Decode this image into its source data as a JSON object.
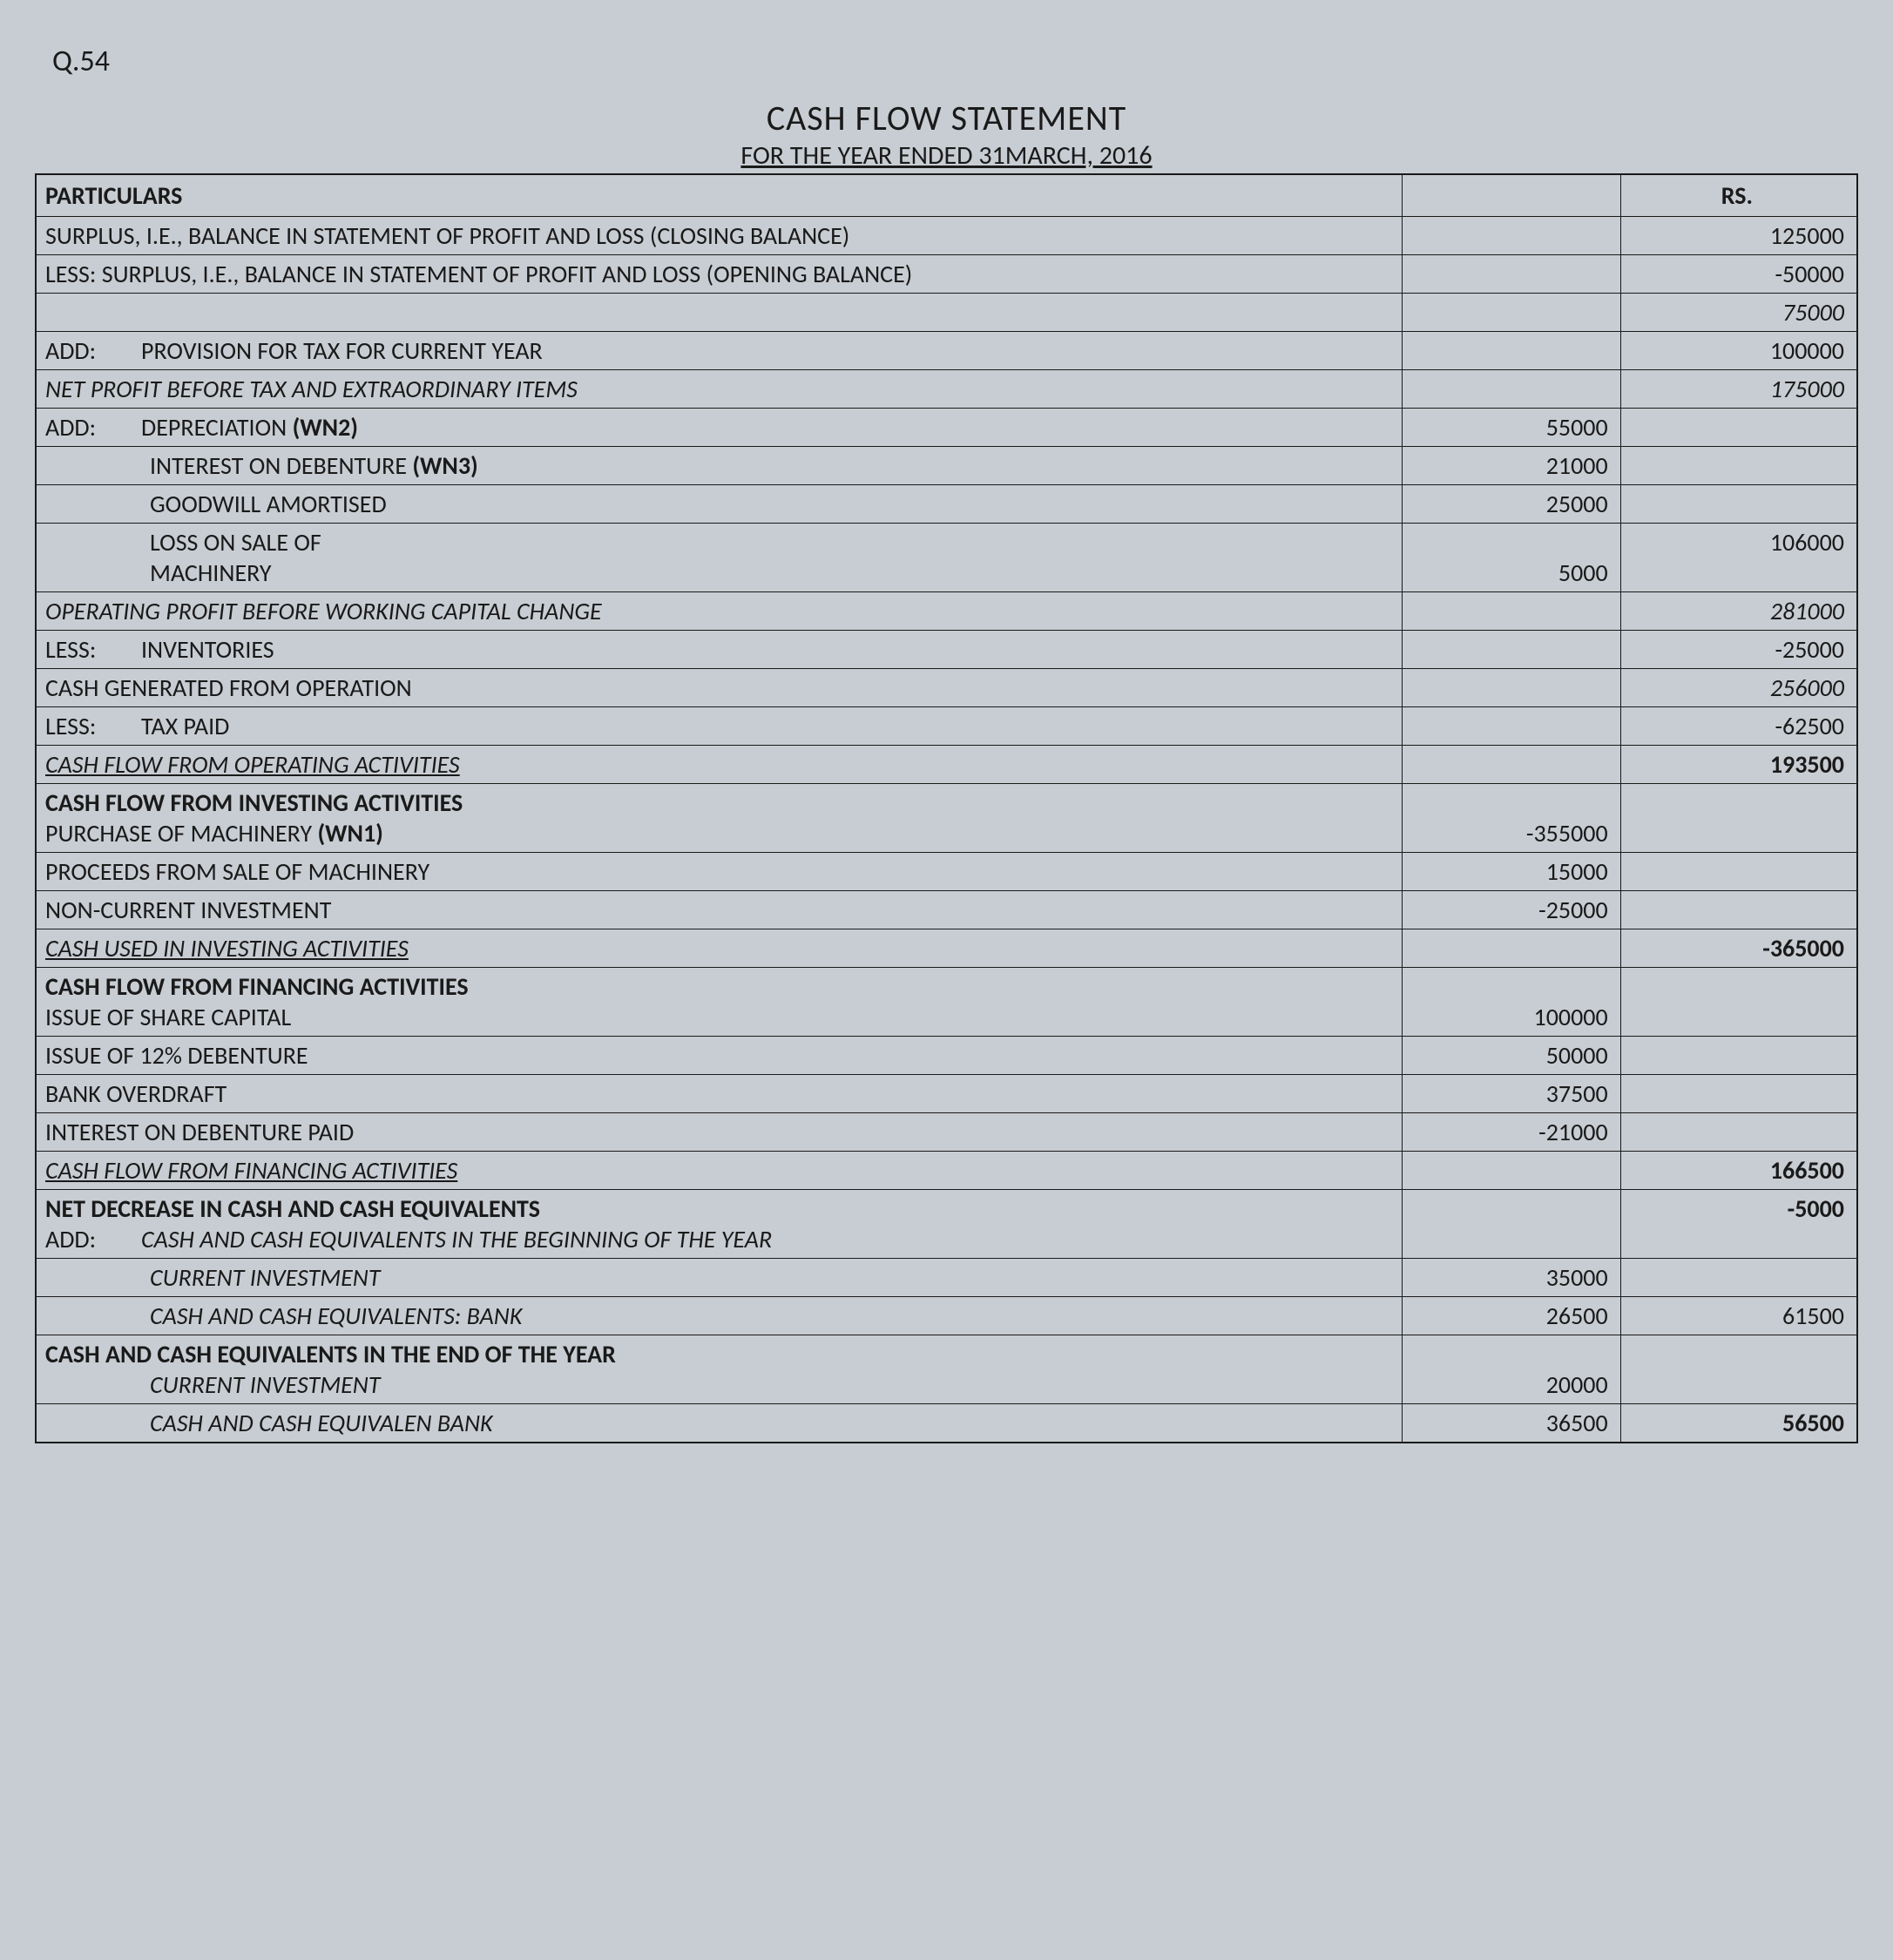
{
  "question_number": "Q.54",
  "title": "CASH FLOW STATEMENT",
  "subtitle": "FOR THE YEAR ENDED 31MARCH, 2016",
  "headers": {
    "particulars": "PARTICULARS",
    "amount2": "RS."
  },
  "rows": [
    {
      "text": "SURPLUS, I.E., BALANCE IN STATEMENT OF PROFIT AND LOSS (CLOSING BALANCE)",
      "amt1": "",
      "amt2": "125000"
    },
    {
      "text": "LESS: SURPLUS, I.E., BALANCE IN STATEMENT OF PROFIT AND LOSS (OPENING BALANCE)",
      "amt1": "",
      "amt2": "-50000"
    },
    {
      "text": "",
      "amt1": "",
      "amt2": "75000",
      "italic2": true
    },
    {
      "prefix": "ADD:",
      "text": "PROVISION FOR TAX FOR CURRENT YEAR",
      "amt1": "",
      "amt2": "100000"
    },
    {
      "text": "NET PROFIT BEFORE TAX AND EXTRAORDINARY ITEMS",
      "italic": true,
      "amt1": "",
      "amt2": "175000",
      "italic2": true
    },
    {
      "prefix": "ADD:",
      "text": "DEPRECIATION ",
      "bold_suffix": "(WN2)",
      "amt1": "55000",
      "amt2": ""
    },
    {
      "indent": true,
      "text": "INTEREST ON DEBENTURE ",
      "bold_suffix": "(WN3)",
      "amt1": "21000",
      "amt2": ""
    },
    {
      "indent": true,
      "text": "GOODWILL AMORTISED",
      "amt1": "25000",
      "amt2": ""
    },
    {
      "indent": true,
      "text": "LOSS ON SALE OF",
      "text2": "MACHINERY",
      "amt1": "5000",
      "amt2": "106000"
    },
    {
      "text": "OPERATING PROFIT BEFORE WORKING CAPITAL CHANGE",
      "italic": true,
      "amt1": "",
      "amt2": "281000",
      "italic2": true
    },
    {
      "prefix": "LESS:",
      "text": "INVENTORIES",
      "amt1": "",
      "amt2": "-25000"
    },
    {
      "text": "CASH GENERATED FROM OPERATION",
      "amt1": "",
      "amt2": "256000",
      "italic2": true
    },
    {
      "prefix": "LESS:",
      "text": "TAX PAID",
      "amt1": "",
      "amt2": "-62500"
    },
    {
      "text": "CASH FLOW FROM OPERATING ACTIVITIES",
      "italic": true,
      "underline": true,
      "amt1": "",
      "amt2": "193500",
      "bold2": true
    },
    {
      "text": "CASH FLOW FROM INVESTING ACTIVITIES",
      "bold": true,
      "text2_noindent": "PURCHASE OF MACHINERY ",
      "text2_bold_suffix": "(WN1)",
      "amt1": "-355000",
      "amt2": ""
    },
    {
      "text": "PROCEEDS FROM SALE OF MACHINERY",
      "amt1": "15000",
      "amt2": ""
    },
    {
      "text": "NON-CURRENT INVESTMENT",
      "amt1": "-25000",
      "amt2": ""
    },
    {
      "text": "CASH USED IN INVESTING ACTIVITIES",
      "italic": true,
      "underline": true,
      "amt1": "",
      "amt2": "-365000",
      "bold2": true
    },
    {
      "text": "CASH FLOW FROM FINANCING ACTIVITIES",
      "bold": true,
      "text2_noindent": "ISSUE OF SHARE CAPITAL",
      "amt1": "100000",
      "amt2": ""
    },
    {
      "text": "ISSUE OF 12% DEBENTURE",
      "amt1": "50000",
      "amt2": ""
    },
    {
      "text": "BANK OVERDRAFT",
      "amt1": "37500",
      "amt2": ""
    },
    {
      "text": "INTEREST ON DEBENTURE PAID",
      "amt1": "-21000",
      "amt2": ""
    },
    {
      "text": "CASH FLOW FROM FINANCING ACTIVITIES",
      "italic": true,
      "underline": true,
      "amt1": "",
      "amt2": "166500",
      "bold2": true
    },
    {
      "text": "NET DECREASE IN CASH AND CASH EQUIVALENTS",
      "bold": true,
      "prefix2": "ADD:",
      "text2_italic": "CASH AND CASH EQUIVALENTS IN THE BEGINNING OF THE YEAR",
      "amt1": "",
      "amt2": "-5000",
      "bold2": true
    },
    {
      "indent": true,
      "text": "CURRENT INVESTMENT",
      "italic": true,
      "amt1": "35000",
      "amt2": ""
    },
    {
      "indent": true,
      "text": "CASH AND CASH EQUIVALENTS: BANK",
      "italic": true,
      "amt1": "26500",
      "amt2": "61500"
    },
    {
      "text": "CASH AND CASH EQUIVALENTS IN THE END OF THE YEAR",
      "bold": true,
      "text2_italic_indent": "CURRENT INVESTMENT",
      "amt1": "20000",
      "amt2": ""
    },
    {
      "indent": true,
      "text": "CASH AND CASH EQUIVALEN     BANK",
      "italic": true,
      "amt1": "36500",
      "amt2": "56500",
      "bold2": true
    }
  ],
  "styling": {
    "background_color": "#c8cdd3",
    "text_color": "#1a1a1a",
    "border_color": "#1a1a1a",
    "title_fontsize": 40,
    "subtitle_fontsize": 30,
    "body_fontsize": 28,
    "font_family": "Calibri"
  }
}
